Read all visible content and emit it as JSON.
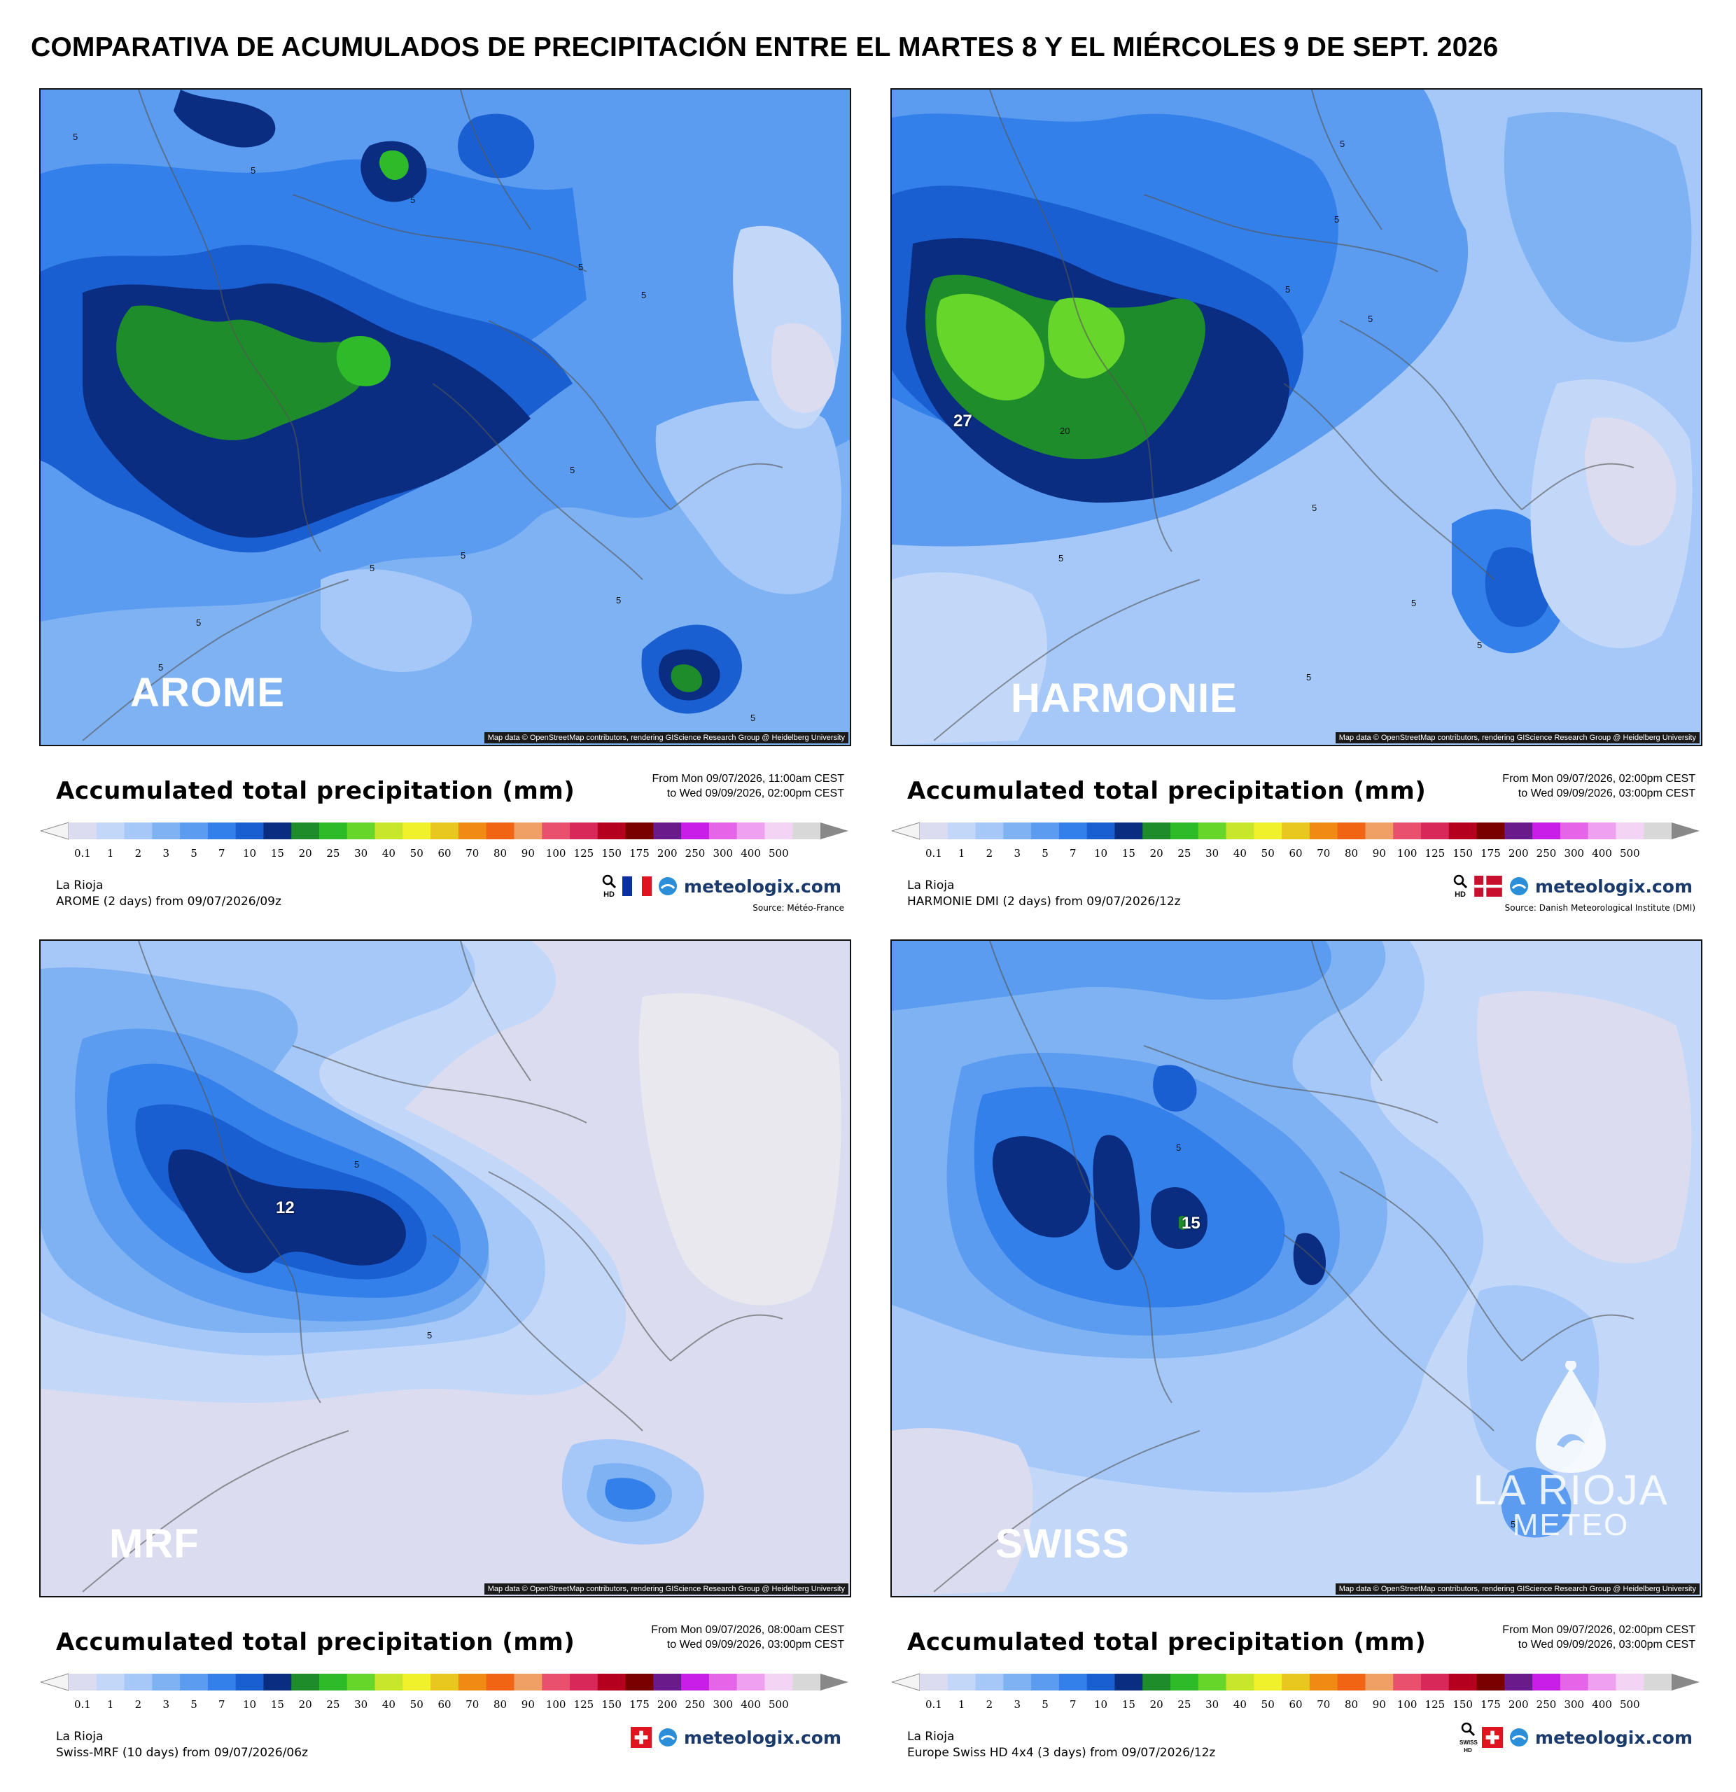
{
  "title": "COMPARATIVA DE ACUMULADOS DE PRECIPITACIÓN ENTRE EL MARTES 8 Y EL MIÉRCOLES 9 DE SEPT. 2026",
  "legend_title": "Accumulated total precipitation (mm)",
  "scale_ticks": [
    "0.1",
    "1",
    "2",
    "3",
    "5",
    "7",
    "10",
    "15",
    "20",
    "25",
    "30",
    "40",
    "50",
    "60",
    "70",
    "80",
    "90",
    "100",
    "125",
    "150",
    "175",
    "200",
    "250",
    "300",
    "400",
    "500"
  ],
  "scale_colors": [
    "#dcdcf0",
    "#c3d8f8",
    "#a5c8f8",
    "#7fb2f3",
    "#5b9cf0",
    "#3480ea",
    "#1a5fd1",
    "#0a2d82",
    "#1e8c2a",
    "#2fba2a",
    "#66d62b",
    "#c8e62b",
    "#f0f02b",
    "#e8c81e",
    "#f08a14",
    "#f06414",
    "#f0a064",
    "#e8506e",
    "#d8285a",
    "#b4001e",
    "#7a0000",
    "#6a1a8a",
    "#c81ee8",
    "#e664e8",
    "#f0a0f0",
    "#f4d4f4",
    "#d8d8d8"
  ],
  "attribution": "Map data © OpenStreetMap contributors, rendering GIScience Research Group @ Heidelberg University",
  "brand": "meteologix.com",
  "panels": [
    {
      "model_label": "AROME",
      "range_from": "From Mon 09/07/2026, 11:00am CEST",
      "range_to": "to Wed 09/09/2026, 02:00pm CEST",
      "location": "La Rioja",
      "run": "AROME (2 days) from 09/07/2026/09z",
      "source": "Source: Météo-France",
      "flag": "france-flag",
      "max_value": "",
      "contour_label": "5"
    },
    {
      "model_label": "HARMONIE",
      "range_from": "From Mon 09/07/2026, 02:00pm CEST",
      "range_to": "to Wed 09/09/2026, 03:00pm CEST",
      "location": "La Rioja",
      "run": "HARMONIE DMI (2 days) from 09/07/2026/12z",
      "source": "Source: Danish Meteorological Institute (DMI)",
      "flag": "denmark-flag",
      "max_value": "27",
      "secondary_value": "20",
      "contour_label": "5"
    },
    {
      "model_label": "MRF",
      "range_from": "From Mon 09/07/2026, 08:00am CEST",
      "range_to": "to Wed 09/09/2026, 03:00pm CEST",
      "location": "La Rioja",
      "run": "Swiss-MRF (10 days) from 09/07/2026/06z",
      "source": "",
      "flag": "switzerland-flag",
      "max_value": "12",
      "contour_label": "5"
    },
    {
      "model_label": "SWISS",
      "range_from": "From Mon 09/07/2026, 02:00pm CEST",
      "range_to": "to Wed 09/09/2026, 03:00pm CEST",
      "location": "La Rioja",
      "run": "Europe Swiss HD 4x4 (3 days) from 09/07/2026/12z",
      "source": "",
      "flag": "switzerland-flag",
      "max_value": "15",
      "contour_label": "5"
    }
  ],
  "watermark": {
    "line1": "LA RIOJA",
    "line2": "METEO"
  },
  "hd_label": "HD",
  "swiss_hd_label": "SWISS HD"
}
